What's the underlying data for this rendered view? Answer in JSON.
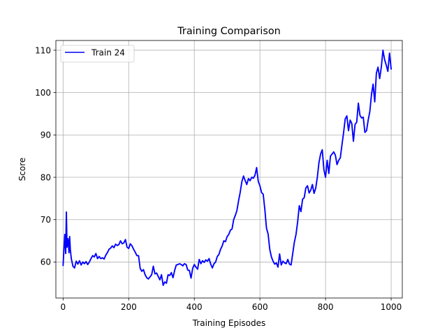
{
  "chart_data": {
    "type": "line",
    "title": "Training Comparison",
    "xlabel": "Training Episodes",
    "ylabel": "Score",
    "xlim": [
      -22,
      1034
    ],
    "ylim": [
      51.5,
      112.3
    ],
    "xticks": [
      0,
      200,
      400,
      600,
      800,
      1000
    ],
    "yticks": [
      60,
      70,
      80,
      90,
      100,
      110
    ],
    "grid": true,
    "legend_position": "top-left",
    "series": [
      {
        "name": "Train 24",
        "color": "#0000ff",
        "x": [
          0,
          5,
          8,
          10,
          12,
          15,
          18,
          20,
          22,
          25,
          30,
          35,
          40,
          45,
          50,
          55,
          60,
          65,
          70,
          75,
          80,
          85,
          90,
          95,
          100,
          105,
          110,
          115,
          120,
          125,
          130,
          135,
          140,
          145,
          150,
          155,
          160,
          165,
          170,
          175,
          180,
          185,
          190,
          195,
          200,
          205,
          210,
          215,
          220,
          225,
          230,
          235,
          240,
          245,
          250,
          255,
          260,
          265,
          270,
          275,
          280,
          285,
          290,
          295,
          300,
          305,
          310,
          315,
          320,
          325,
          330,
          335,
          340,
          345,
          350,
          355,
          360,
          365,
          370,
          375,
          380,
          385,
          390,
          395,
          400,
          405,
          410,
          415,
          420,
          425,
          430,
          435,
          440,
          445,
          450,
          455,
          460,
          465,
          470,
          475,
          480,
          485,
          490,
          495,
          500,
          505,
          510,
          515,
          520,
          525,
          530,
          535,
          540,
          545,
          550,
          555,
          560,
          565,
          570,
          575,
          580,
          585,
          590,
          595,
          600,
          605,
          610,
          615,
          620,
          625,
          630,
          635,
          640,
          645,
          650,
          655,
          660,
          665,
          670,
          675,
          680,
          685,
          690,
          695,
          700,
          705,
          710,
          715,
          720,
          725,
          730,
          735,
          740,
          745,
          750,
          755,
          760,
          765,
          770,
          775,
          780,
          785,
          790,
          795,
          800,
          805,
          810,
          815,
          820,
          825,
          830,
          835,
          840,
          845,
          850,
          855,
          860,
          865,
          870,
          875,
          880,
          885,
          890,
          895,
          900,
          905,
          910,
          915,
          920,
          925,
          930,
          935,
          940,
          945,
          950,
          955,
          960,
          965,
          970,
          975,
          980,
          985,
          990,
          995,
          1000
        ],
        "y": [
          59.2,
          66.5,
          62.0,
          71.8,
          63.5,
          65.5,
          62.2,
          66.0,
          63.0,
          60.8,
          59.0,
          58.6,
          60.2,
          59.5,
          60.3,
          59.3,
          60.0,
          59.6,
          60.1,
          59.4,
          60.0,
          60.8,
          61.5,
          61.2,
          62.0,
          60.8,
          61.3,
          60.8,
          61.0,
          60.7,
          61.6,
          62.2,
          63.0,
          63.3,
          63.8,
          63.4,
          64.2,
          63.9,
          64.1,
          65.0,
          64.3,
          64.5,
          65.3,
          63.5,
          63.2,
          64.3,
          63.8,
          63.0,
          62.3,
          61.5,
          61.5,
          58.5,
          57.8,
          58.2,
          57.0,
          56.3,
          56.0,
          56.5,
          57.0,
          59.0,
          57.2,
          57.4,
          56.6,
          55.8,
          57.0,
          54.5,
          55.3,
          55.0,
          57.0,
          56.8,
          57.5,
          56.3,
          58.0,
          59.3,
          59.4,
          59.6,
          59.4,
          59.1,
          59.6,
          59.4,
          58.1,
          58.0,
          56.2,
          58.5,
          59.4,
          58.8,
          58.3,
          60.6,
          59.6,
          60.3,
          59.9,
          60.5,
          60.2,
          60.8,
          59.5,
          58.6,
          59.6,
          60.0,
          61.3,
          61.8,
          63.0,
          63.8,
          65.0,
          64.8,
          66.0,
          66.5,
          67.5,
          67.8,
          70.0,
          71.0,
          72.2,
          74.5,
          76.5,
          79.0,
          80.3,
          79.2,
          78.3,
          79.7,
          79.2,
          80.0,
          79.8,
          80.5,
          82.3,
          79.0,
          78.0,
          76.4,
          76.0,
          72.4,
          68.0,
          66.6,
          63.0,
          61.2,
          60.2,
          59.5,
          59.8,
          58.8,
          61.9,
          59.3,
          60.2,
          59.8,
          59.6,
          60.6,
          59.5,
          59.3,
          62.0,
          64.7,
          66.5,
          69.5,
          73.3,
          71.9,
          74.8,
          75.2,
          77.5,
          78.0,
          76.3,
          77.0,
          78.3,
          76.2,
          77.4,
          80.0,
          83.5,
          85.5,
          86.5,
          81.8,
          80.0,
          84.0,
          80.9,
          85.0,
          85.5,
          86.0,
          85.2,
          83.0,
          84.0,
          84.6,
          87.6,
          90.5,
          93.8,
          94.5,
          91.0,
          93.5,
          92.7,
          88.5,
          92.5,
          93.0,
          97.5,
          94.6,
          94.0,
          94.2,
          90.6,
          91.0,
          93.5,
          95.5,
          99.5,
          102.0,
          97.8,
          104.6,
          106.0,
          103.3,
          106.0,
          110.0,
          107.8,
          106.5,
          105.0,
          109.3,
          105.6
        ]
      }
    ]
  }
}
